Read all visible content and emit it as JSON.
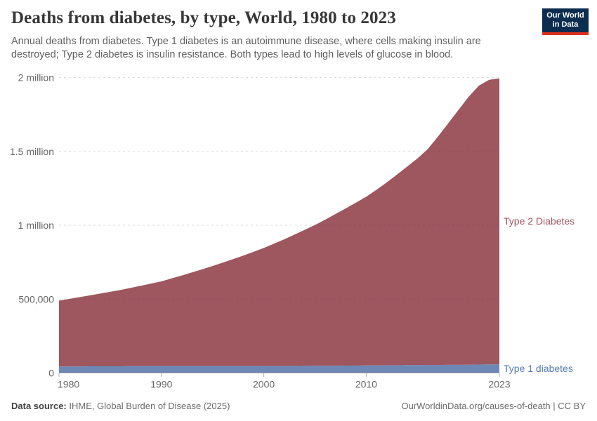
{
  "header": {
    "title": "Deaths from diabetes, by type, World, 1980 to 2023",
    "subtitle": "Annual deaths from diabetes. Type 1 diabetes is an autoimmune disease, where cells making insulin are destroyed; Type 2 diabetes is insulin resistance. Both types lead to high levels of glucose in blood."
  },
  "logo": {
    "line1": "Our World",
    "line2": "in Data",
    "bg_color": "#0d2d4f",
    "accent_color": "#e0301e"
  },
  "footer": {
    "source_label": "Data source:",
    "source_value": "IHME, Global Burden of Disease (2025)",
    "link": "OurWorldinData.org/causes-of-death | CC BY"
  },
  "chart_data": {
    "type": "area",
    "stacked": true,
    "title": "Deaths from diabetes, by type, World, 1980 to 2023",
    "xlabel": "",
    "ylabel": "Annual deaths",
    "xlim": [
      1980,
      2023
    ],
    "ylim": [
      0,
      2000000
    ],
    "grid": true,
    "legend_position": "right-edge-labels",
    "years": [
      1980,
      1981,
      1982,
      1983,
      1984,
      1985,
      1986,
      1987,
      1988,
      1989,
      1990,
      1991,
      1992,
      1993,
      1994,
      1995,
      1996,
      1997,
      1998,
      1999,
      2000,
      2001,
      2002,
      2003,
      2004,
      2005,
      2006,
      2007,
      2008,
      2009,
      2010,
      2011,
      2012,
      2013,
      2014,
      2015,
      2016,
      2017,
      2018,
      2019,
      2020,
      2021,
      2022,
      2023
    ],
    "series": [
      {
        "name": "Type 1 diabetes",
        "color": "#6d88b5",
        "label_color": "#577cb0",
        "values": [
          44000,
          44000,
          44000,
          45000,
          45000,
          45000,
          45000,
          46000,
          46000,
          46000,
          46000,
          46000,
          46000,
          46000,
          46000,
          46000,
          46000,
          46000,
          46000,
          46000,
          46000,
          47000,
          47000,
          47000,
          48000,
          48000,
          49000,
          49000,
          50000,
          50000,
          51000,
          51000,
          52000,
          52000,
          53000,
          53000,
          54000,
          54000,
          55000,
          55000,
          56000,
          57000,
          58000,
          58000
        ]
      },
      {
        "name": "Type 2 Diabetes",
        "color": "#9e565f",
        "label_color": "#a2555f",
        "values": [
          446000,
          457000,
          469000,
          480000,
          492000,
          504000,
          517000,
          530000,
          544000,
          559000,
          574000,
          594000,
          614000,
          635000,
          656000,
          678000,
          701000,
          725000,
          749000,
          774000,
          800000,
          828000,
          858000,
          890000,
          921000,
          954000,
          989000,
          1027000,
          1064000,
          1103000,
          1142000,
          1189000,
          1238000,
          1291000,
          1344000,
          1399000,
          1461000,
          1546000,
          1635000,
          1725000,
          1814000,
          1888000,
          1927000,
          1937000
        ]
      }
    ],
    "yticks": [
      {
        "value": 0,
        "label": "0"
      },
      {
        "value": 500000,
        "label": "500,000"
      },
      {
        "value": 1000000,
        "label": "1 million"
      },
      {
        "value": 1500000,
        "label": "1.5 million"
      },
      {
        "value": 2000000,
        "label": "2 million"
      }
    ],
    "xticks": [
      1980,
      1990,
      2000,
      2010,
      2023
    ]
  }
}
